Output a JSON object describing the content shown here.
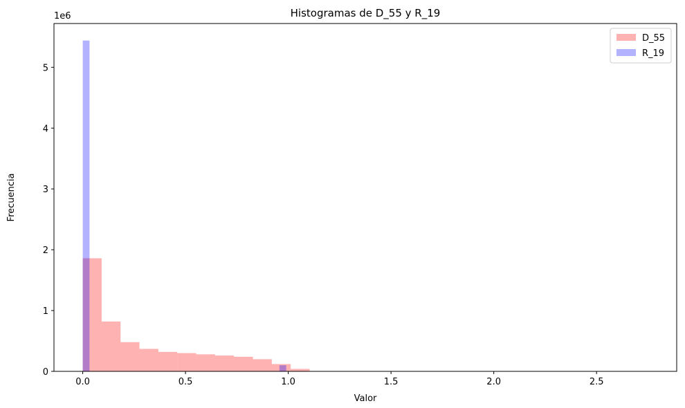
{
  "chart_data": {
    "type": "bar",
    "title": "Histogramas de D_55 y R_19",
    "xlabel": "Valor",
    "ylabel": "Frecuencia",
    "offset_text": "1e6",
    "xlim": [
      -0.14,
      2.89
    ],
    "ylim": [
      0,
      5.72
    ],
    "x_ticks": [
      0.0,
      0.5,
      1.0,
      1.5,
      2.0,
      2.5
    ],
    "x_tick_labels": [
      "0.0",
      "0.5",
      "1.0",
      "1.5",
      "2.0",
      "2.5"
    ],
    "y_ticks": [
      0,
      1,
      2,
      3,
      4,
      5
    ],
    "y_tick_labels": [
      "0",
      "1",
      "2",
      "3",
      "4",
      "5"
    ],
    "legend_position": "upper right",
    "series": [
      {
        "name": "D_55",
        "color": "#ff0000",
        "alpha": 0.3,
        "bins": [
          [
            0.0,
            0.092,
            1.86
          ],
          [
            0.092,
            0.184,
            0.82
          ],
          [
            0.184,
            0.276,
            0.48
          ],
          [
            0.276,
            0.368,
            0.37
          ],
          [
            0.368,
            0.46,
            0.32
          ],
          [
            0.46,
            0.552,
            0.3
          ],
          [
            0.552,
            0.644,
            0.28
          ],
          [
            0.644,
            0.736,
            0.26
          ],
          [
            0.736,
            0.828,
            0.24
          ],
          [
            0.828,
            0.92,
            0.2
          ],
          [
            0.92,
            1.012,
            0.12
          ],
          [
            1.012,
            1.104,
            0.04
          ],
          [
            1.104,
            1.196,
            0.005
          ]
        ]
      },
      {
        "name": "R_19",
        "color": "#0000ff",
        "alpha": 0.3,
        "bins": [
          [
            0.0,
            0.033,
            5.44
          ],
          [
            0.957,
            0.99,
            0.1
          ]
        ]
      }
    ]
  }
}
